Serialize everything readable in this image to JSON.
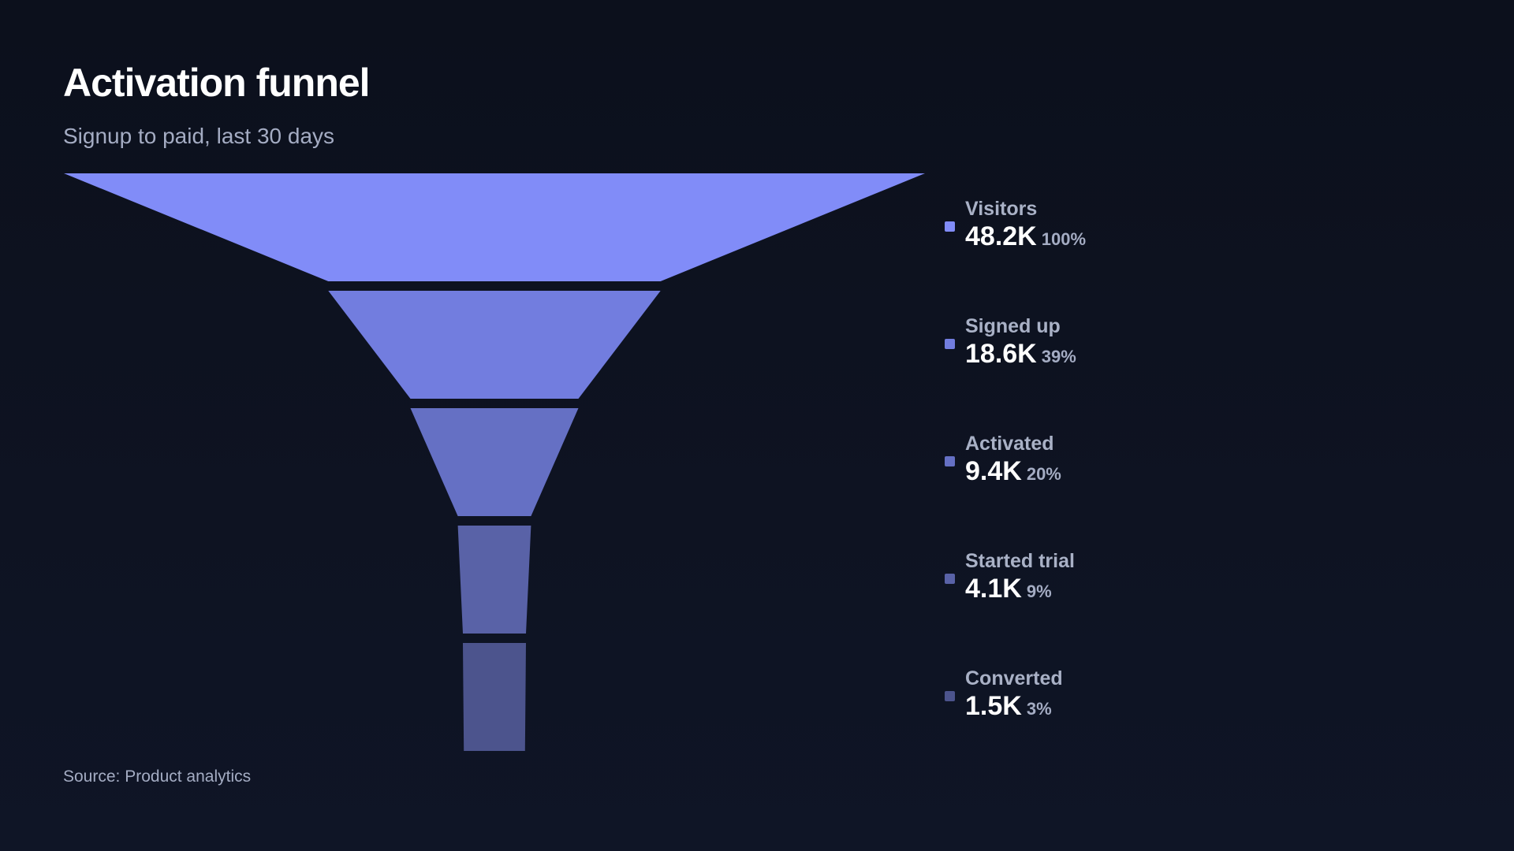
{
  "chart_data": {
    "type": "funnel",
    "title": "Activation funnel",
    "subtitle": "Signup to paid, last 30 days",
    "source": "Source: Product analytics",
    "stages": [
      {
        "label": "Visitors",
        "value": 48200,
        "value_label": "48.2K",
        "percent_label": "100%",
        "color": "#818cf8"
      },
      {
        "label": "Signed up",
        "value": 18600,
        "value_label": "18.6K",
        "percent_label": "39%",
        "color": "#727ddf"
      },
      {
        "label": "Activated",
        "value": 9400,
        "value_label": "9.4K",
        "percent_label": "20%",
        "color": "#6570c4"
      },
      {
        "label": "Started trial",
        "value": 4100,
        "value_label": "4.1K",
        "percent_label": "9%",
        "color": "#5962a7"
      },
      {
        "label": "Converted",
        "value": 1500,
        "value_label": "1.5K",
        "percent_label": "3%",
        "color": "#4c548d"
      }
    ]
  }
}
